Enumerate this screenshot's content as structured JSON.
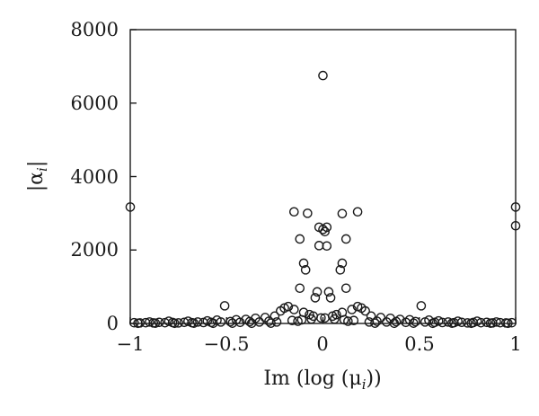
{
  "chart_data": {
    "type": "scatter",
    "title": "",
    "xlabel": "Im (log (μ",
    "xlabel_sub": "i",
    "xlabel_tail": "))",
    "ylabel": "|α",
    "ylabel_sub": "i",
    "ylabel_tail": "|",
    "xlim": [
      -1,
      1
    ],
    "ylim": [
      0,
      8000
    ],
    "xticks": [
      -1,
      -0.5,
      0,
      0.5,
      1
    ],
    "xtick_labels": [
      "−1",
      "−0.5",
      "0",
      "0.5",
      "1"
    ],
    "yticks": [
      0,
      2000,
      4000,
      6000,
      8000
    ],
    "ytick_labels": [
      "0",
      "2000",
      "4000",
      "6000",
      "8000"
    ],
    "grid": false,
    "legend": "none",
    "marker": "open-circle",
    "series": [
      {
        "points": [
          [
            0.0,
            6750
          ],
          [
            -1.0,
            3170
          ],
          [
            1.0,
            3170
          ],
          [
            1.0,
            2660
          ],
          [
            -0.15,
            3040
          ],
          [
            -0.08,
            3000
          ],
          [
            0.1,
            2990
          ],
          [
            0.18,
            3040
          ],
          [
            -0.02,
            2620
          ],
          [
            0.0,
            2560
          ],
          [
            0.02,
            2620
          ],
          [
            0.01,
            2500
          ],
          [
            -0.02,
            2120
          ],
          [
            0.02,
            2110
          ],
          [
            -0.12,
            2300
          ],
          [
            0.12,
            2300
          ],
          [
            -0.1,
            1640
          ],
          [
            0.1,
            1640
          ],
          [
            -0.09,
            1460
          ],
          [
            0.09,
            1460
          ],
          [
            -0.12,
            960
          ],
          [
            0.12,
            960
          ],
          [
            -0.03,
            860
          ],
          [
            0.03,
            860
          ],
          [
            -0.04,
            700
          ],
          [
            0.04,
            700
          ],
          [
            -0.51,
            480
          ],
          [
            0.51,
            480
          ],
          [
            -0.2,
            420
          ],
          [
            -0.18,
            460
          ],
          [
            0.18,
            460
          ],
          [
            0.2,
            420
          ],
          [
            -0.15,
            380
          ],
          [
            0.15,
            380
          ],
          [
            -0.22,
            340
          ],
          [
            0.22,
            340
          ],
          [
            -0.1,
            300
          ],
          [
            0.1,
            300
          ],
          [
            -0.07,
            240
          ],
          [
            0.07,
            240
          ],
          [
            -0.05,
            200
          ],
          [
            0.05,
            200
          ],
          [
            -0.25,
            200
          ],
          [
            0.25,
            200
          ],
          [
            -0.3,
            160
          ],
          [
            0.3,
            160
          ],
          [
            -0.35,
            140
          ],
          [
            0.35,
            140
          ],
          [
            -0.45,
            100
          ],
          [
            0.45,
            100
          ],
          [
            -0.4,
            110
          ],
          [
            0.4,
            110
          ],
          [
            -0.55,
            90
          ],
          [
            0.55,
            90
          ],
          [
            -0.6,
            70
          ],
          [
            0.6,
            70
          ],
          [
            -0.7,
            60
          ],
          [
            0.7,
            60
          ],
          [
            -0.8,
            60
          ],
          [
            0.8,
            60
          ],
          [
            -0.9,
            40
          ],
          [
            0.9,
            40
          ],
          [
            -0.98,
            20
          ],
          [
            -0.95,
            15
          ],
          [
            -0.92,
            20
          ],
          [
            -0.88,
            15
          ],
          [
            -0.85,
            30
          ],
          [
            -0.82,
            20
          ],
          [
            -0.78,
            25
          ],
          [
            -0.75,
            15
          ],
          [
            -0.72,
            30
          ],
          [
            -0.68,
            20
          ],
          [
            -0.65,
            40
          ],
          [
            -0.62,
            25
          ],
          [
            -0.58,
            30
          ],
          [
            -0.53,
            40
          ],
          [
            -0.48,
            50
          ],
          [
            -0.43,
            30
          ],
          [
            -0.38,
            50
          ],
          [
            -0.33,
            40
          ],
          [
            -0.28,
            60
          ],
          [
            -0.24,
            40
          ],
          [
            -0.16,
            80
          ],
          [
            -0.13,
            60
          ],
          [
            -0.11,
            100
          ],
          [
            -0.06,
            120
          ],
          [
            -0.01,
            150
          ],
          [
            0.01,
            150
          ],
          [
            0.06,
            120
          ],
          [
            0.11,
            100
          ],
          [
            0.13,
            60
          ],
          [
            0.16,
            80
          ],
          [
            0.24,
            40
          ],
          [
            0.28,
            60
          ],
          [
            0.33,
            40
          ],
          [
            0.38,
            50
          ],
          [
            0.43,
            30
          ],
          [
            0.48,
            50
          ],
          [
            0.53,
            40
          ],
          [
            0.58,
            30
          ],
          [
            0.62,
            25
          ],
          [
            0.65,
            40
          ],
          [
            0.68,
            20
          ],
          [
            0.72,
            30
          ],
          [
            0.75,
            15
          ],
          [
            0.78,
            25
          ],
          [
            0.82,
            20
          ],
          [
            0.85,
            30
          ],
          [
            0.88,
            15
          ],
          [
            0.92,
            20
          ],
          [
            0.95,
            15
          ],
          [
            0.98,
            20
          ],
          [
            -0.96,
            5
          ],
          [
            -0.87,
            8
          ],
          [
            -0.77,
            5
          ],
          [
            -0.67,
            8
          ],
          [
            -0.57,
            5
          ],
          [
            -0.47,
            8
          ],
          [
            -0.37,
            5
          ],
          [
            -0.27,
            8
          ],
          [
            0.27,
            8
          ],
          [
            0.37,
            5
          ],
          [
            0.47,
            8
          ],
          [
            0.57,
            5
          ],
          [
            0.67,
            8
          ],
          [
            0.77,
            5
          ],
          [
            0.87,
            8
          ],
          [
            0.96,
            5
          ]
        ]
      }
    ]
  }
}
